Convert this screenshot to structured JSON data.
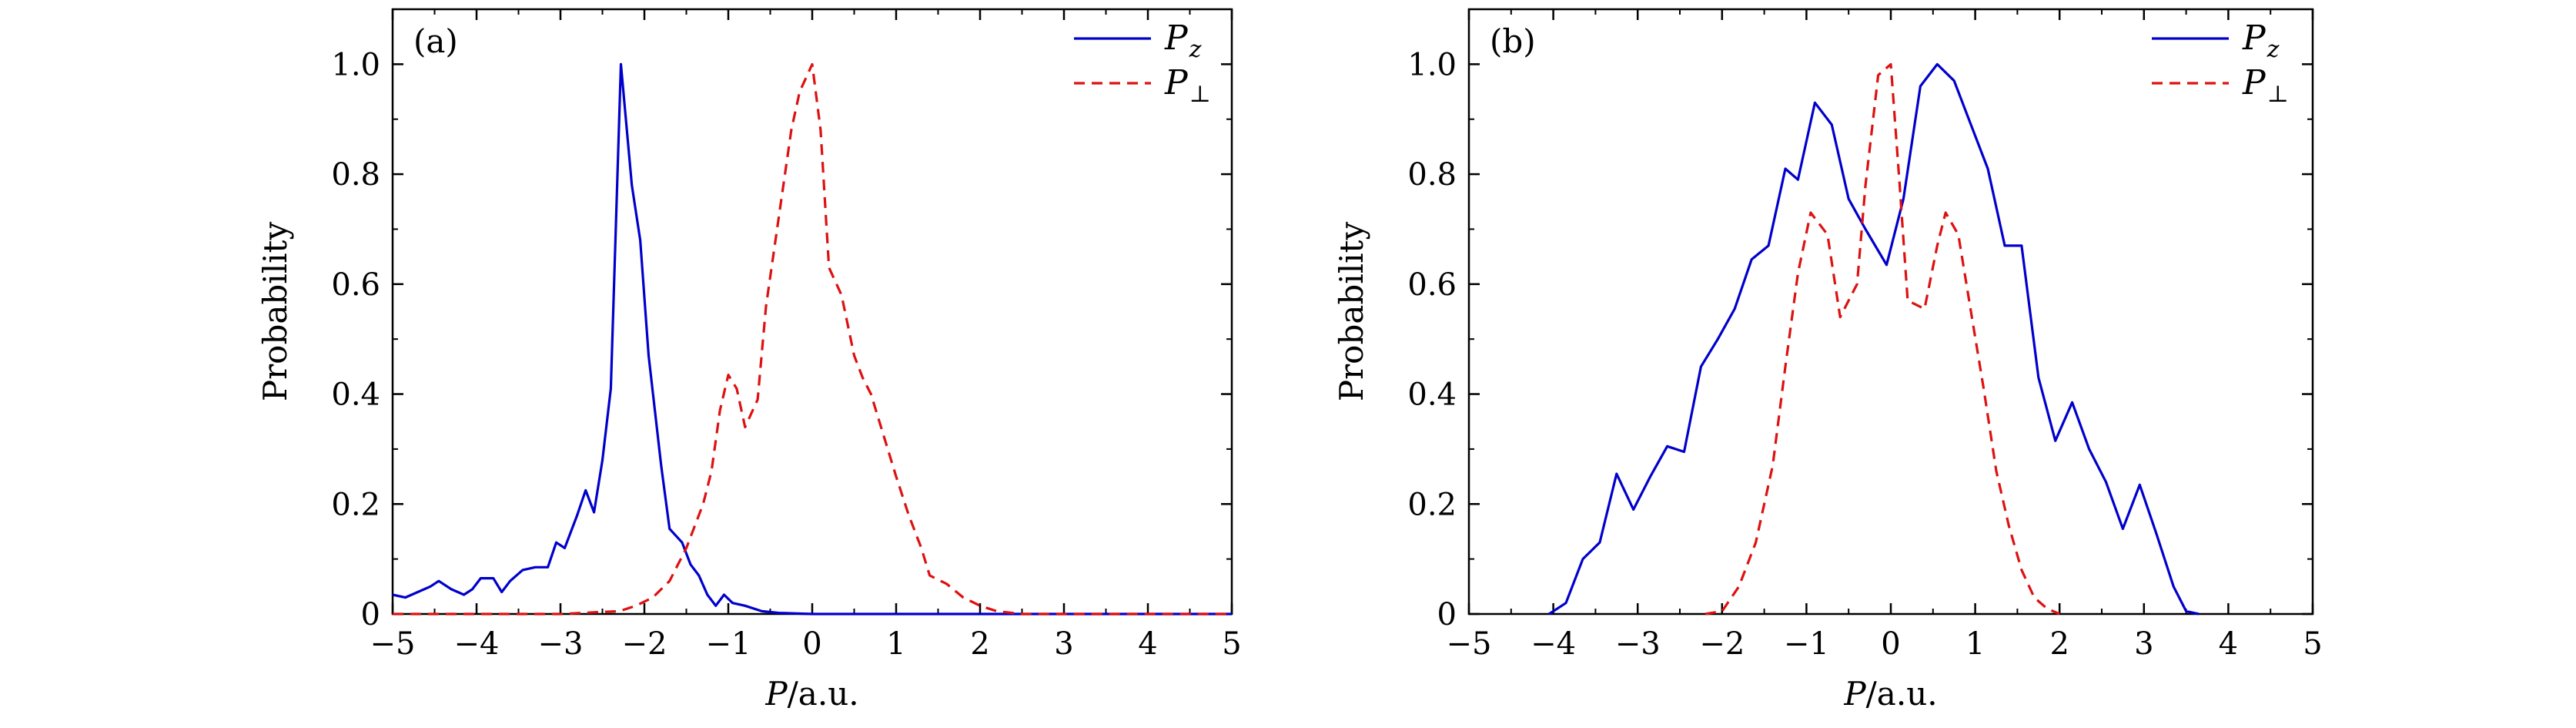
{
  "chart_data": [
    {
      "type": "line",
      "panel_label": "(a)",
      "title": "",
      "xlabel_var": "P",
      "xlabel_unit": "/a.u.",
      "ylabel": "Probability",
      "xlim": [
        -5,
        5
      ],
      "ylim": [
        0,
        1.1
      ],
      "xticks": [
        -5,
        -4,
        -3,
        -2,
        -1,
        0,
        1,
        2,
        3,
        4,
        5
      ],
      "xtick_labels": [
        "−5",
        "−4",
        "−3",
        "−2",
        "−1",
        "0",
        "1",
        "2",
        "3",
        "4",
        "5"
      ],
      "yticks": [
        0,
        0.2,
        0.4,
        0.6,
        0.8,
        1.0
      ],
      "ytick_labels": [
        "0",
        "0.2",
        "0.4",
        "0.6",
        "0.8",
        "1.0"
      ],
      "legend_position": "top-right",
      "grid": false,
      "series": [
        {
          "name": "P",
          "subscript": "z",
          "color": "#0000cc",
          "style": "solid",
          "points": [
            [
              -5.0,
              0.035
            ],
            [
              -4.85,
              0.03
            ],
            [
              -4.7,
              0.04
            ],
            [
              -4.55,
              0.05
            ],
            [
              -4.45,
              0.06
            ],
            [
              -4.3,
              0.045
            ],
            [
              -4.15,
              0.035
            ],
            [
              -4.05,
              0.045
            ],
            [
              -3.95,
              0.065
            ],
            [
              -3.8,
              0.065
            ],
            [
              -3.7,
              0.04
            ],
            [
              -3.6,
              0.06
            ],
            [
              -3.45,
              0.08
            ],
            [
              -3.3,
              0.085
            ],
            [
              -3.15,
              0.085
            ],
            [
              -3.05,
              0.13
            ],
            [
              -2.95,
              0.12
            ],
            [
              -2.8,
              0.18
            ],
            [
              -2.7,
              0.225
            ],
            [
              -2.6,
              0.185
            ],
            [
              -2.5,
              0.28
            ],
            [
              -2.4,
              0.41
            ],
            [
              -2.28,
              1.0
            ],
            [
              -2.15,
              0.78
            ],
            [
              -2.05,
              0.68
            ],
            [
              -1.95,
              0.47
            ],
            [
              -1.8,
              0.27
            ],
            [
              -1.7,
              0.155
            ],
            [
              -1.55,
              0.13
            ],
            [
              -1.45,
              0.09
            ],
            [
              -1.35,
              0.07
            ],
            [
              -1.25,
              0.035
            ],
            [
              -1.15,
              0.015
            ],
            [
              -1.05,
              0.035
            ],
            [
              -0.95,
              0.02
            ],
            [
              -0.8,
              0.015
            ],
            [
              -0.6,
              0.005
            ],
            [
              -0.4,
              0.002
            ],
            [
              0.0,
              0.0
            ],
            [
              5.0,
              0.0
            ]
          ]
        },
        {
          "name": "P",
          "subscript": "⊥",
          "color": "#dd1111",
          "style": "dashed",
          "points": [
            [
              -5.0,
              0.0
            ],
            [
              -3.0,
              0.0
            ],
            [
              -2.6,
              0.003
            ],
            [
              -2.3,
              0.005
            ],
            [
              -2.1,
              0.015
            ],
            [
              -1.9,
              0.03
            ],
            [
              -1.7,
              0.06
            ],
            [
              -1.5,
              0.12
            ],
            [
              -1.3,
              0.2
            ],
            [
              -1.2,
              0.26
            ],
            [
              -1.1,
              0.37
            ],
            [
              -1.0,
              0.435
            ],
            [
              -0.9,
              0.41
            ],
            [
              -0.8,
              0.34
            ],
            [
              -0.65,
              0.39
            ],
            [
              -0.55,
              0.56
            ],
            [
              -0.4,
              0.72
            ],
            [
              -0.25,
              0.88
            ],
            [
              -0.15,
              0.95
            ],
            [
              0.0,
              1.0
            ],
            [
              0.1,
              0.88
            ],
            [
              0.2,
              0.63
            ],
            [
              0.35,
              0.58
            ],
            [
              0.5,
              0.47
            ],
            [
              0.6,
              0.43
            ],
            [
              0.7,
              0.4
            ],
            [
              0.9,
              0.3
            ],
            [
              1.0,
              0.25
            ],
            [
              1.15,
              0.18
            ],
            [
              1.3,
              0.12
            ],
            [
              1.4,
              0.07
            ],
            [
              1.6,
              0.055
            ],
            [
              1.8,
              0.03
            ],
            [
              2.0,
              0.015
            ],
            [
              2.2,
              0.005
            ],
            [
              2.5,
              0.0
            ],
            [
              5.0,
              0.0
            ]
          ]
        }
      ]
    },
    {
      "type": "line",
      "panel_label": "(b)",
      "title": "",
      "xlabel_var": "P",
      "xlabel_unit": "/a.u.",
      "ylabel": "Probability",
      "xlim": [
        -5,
        5
      ],
      "ylim": [
        0,
        1.1
      ],
      "xticks": [
        -5,
        -4,
        -3,
        -2,
        -1,
        0,
        1,
        2,
        3,
        4,
        5
      ],
      "xtick_labels": [
        "−5",
        "−4",
        "−3",
        "−2",
        "−1",
        "0",
        "1",
        "2",
        "3",
        "4",
        "5"
      ],
      "yticks": [
        0,
        0.2,
        0.4,
        0.6,
        0.8,
        1.0
      ],
      "ytick_labels": [
        "0",
        "0.2",
        "0.4",
        "0.6",
        "0.8",
        "1.0"
      ],
      "legend_position": "top-right",
      "grid": false,
      "series": [
        {
          "name": "P",
          "subscript": "z",
          "color": "#0000cc",
          "style": "solid",
          "points": [
            [
              -4.05,
              0.0
            ],
            [
              -3.85,
              0.02
            ],
            [
              -3.65,
              0.1
            ],
            [
              -3.45,
              0.13
            ],
            [
              -3.25,
              0.255
            ],
            [
              -3.05,
              0.19
            ],
            [
              -2.85,
              0.25
            ],
            [
              -2.65,
              0.305
            ],
            [
              -2.45,
              0.295
            ],
            [
              -2.25,
              0.45
            ],
            [
              -2.05,
              0.5
            ],
            [
              -1.85,
              0.555
            ],
            [
              -1.65,
              0.645
            ],
            [
              -1.45,
              0.67
            ],
            [
              -1.25,
              0.81
            ],
            [
              -1.1,
              0.79
            ],
            [
              -0.9,
              0.93
            ],
            [
              -0.7,
              0.89
            ],
            [
              -0.5,
              0.755
            ],
            [
              -0.3,
              0.7
            ],
            [
              -0.05,
              0.635
            ],
            [
              0.15,
              0.755
            ],
            [
              0.35,
              0.96
            ],
            [
              0.55,
              1.0
            ],
            [
              0.75,
              0.97
            ],
            [
              0.95,
              0.89
            ],
            [
              1.15,
              0.81
            ],
            [
              1.35,
              0.67
            ],
            [
              1.55,
              0.67
            ],
            [
              1.75,
              0.43
            ],
            [
              1.95,
              0.315
            ],
            [
              2.15,
              0.385
            ],
            [
              2.35,
              0.3
            ],
            [
              2.55,
              0.24
            ],
            [
              2.75,
              0.155
            ],
            [
              2.95,
              0.235
            ],
            [
              3.15,
              0.145
            ],
            [
              3.35,
              0.05
            ],
            [
              3.5,
              0.005
            ],
            [
              3.65,
              0.0
            ]
          ]
        },
        {
          "name": "P",
          "subscript": "⊥",
          "color": "#dd1111",
          "style": "dashed",
          "points": [
            [
              -2.2,
              0.0
            ],
            [
              -2.0,
              0.005
            ],
            [
              -1.8,
              0.05
            ],
            [
              -1.6,
              0.13
            ],
            [
              -1.4,
              0.27
            ],
            [
              -1.25,
              0.45
            ],
            [
              -1.1,
              0.62
            ],
            [
              -0.95,
              0.73
            ],
            [
              -0.75,
              0.69
            ],
            [
              -0.6,
              0.54
            ],
            [
              -0.4,
              0.6
            ],
            [
              -0.3,
              0.78
            ],
            [
              -0.15,
              0.98
            ],
            [
              0.0,
              1.0
            ],
            [
              0.1,
              0.79
            ],
            [
              0.2,
              0.57
            ],
            [
              0.4,
              0.555
            ],
            [
              0.55,
              0.67
            ],
            [
              0.65,
              0.73
            ],
            [
              0.8,
              0.69
            ],
            [
              0.95,
              0.55
            ],
            [
              1.1,
              0.41
            ],
            [
              1.25,
              0.26
            ],
            [
              1.4,
              0.16
            ],
            [
              1.55,
              0.08
            ],
            [
              1.7,
              0.03
            ],
            [
              1.85,
              0.01
            ],
            [
              2.0,
              0.0
            ]
          ]
        }
      ]
    }
  ]
}
